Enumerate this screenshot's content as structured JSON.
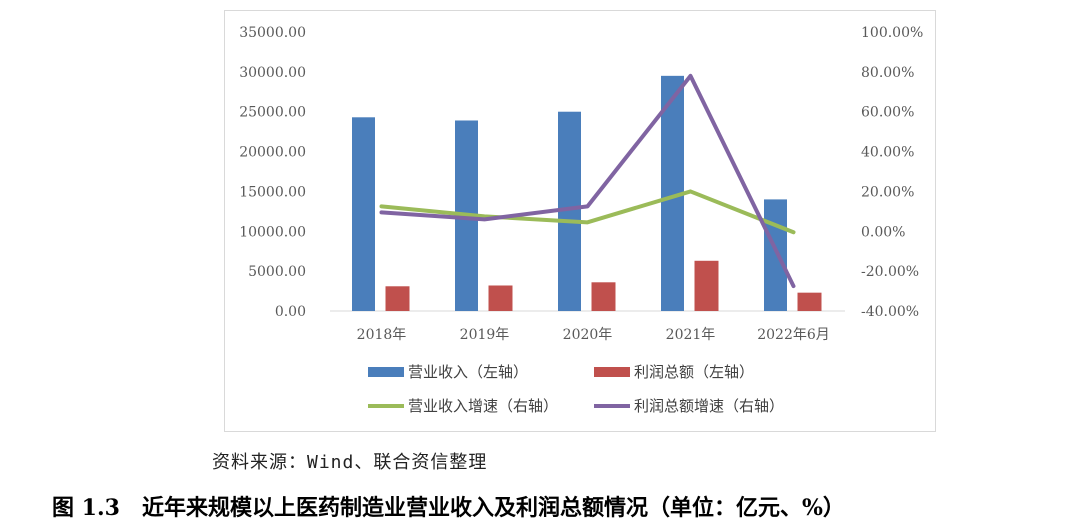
{
  "chart_data": {
    "type": "bar",
    "categories": [
      "2018年",
      "2019年",
      "2020年",
      "2021年",
      "2022年6月"
    ],
    "left_axis": {
      "ylim": [
        0,
        35000
      ],
      "ticks": [
        "0.00",
        "5000.00",
        "10000.00",
        "15000.00",
        "20000.00",
        "25000.00",
        "30000.00",
        "35000.00"
      ]
    },
    "right_axis": {
      "ylim": [
        -40,
        100
      ],
      "ticks": [
        "-40.00%",
        "-20.00%",
        "0.00%",
        "20.00%",
        "40.00%",
        "60.00%",
        "80.00%",
        "100.00%"
      ]
    },
    "series": [
      {
        "name": "营业收入（左轴）",
        "kind": "bar",
        "axis": "left",
        "color": "#4a7ebb",
        "values": [
          24300,
          23900,
          25000,
          29500,
          14000
        ]
      },
      {
        "name": "利润总额（左轴）",
        "kind": "bar",
        "axis": "left",
        "color": "#c0504d",
        "values": [
          3100,
          3200,
          3600,
          6300,
          2300
        ]
      },
      {
        "name": "营业收入增速（右轴）",
        "kind": "line",
        "axis": "right",
        "color": "#9bbb59",
        "values": [
          12.5,
          7.5,
          4.5,
          20.0,
          -0.5
        ]
      },
      {
        "name": "利润总额增速（右轴）",
        "kind": "line",
        "axis": "right",
        "color": "#8064a2",
        "values": [
          9.5,
          6.0,
          12.5,
          78.0,
          -27.5
        ]
      }
    ],
    "legend": "bottom"
  },
  "source": "资料来源：Wind、联合资信整理",
  "caption": {
    "number": "图 1.3",
    "title": "近年来规模以上医药制造业营业收入及利润总额情况（单位：亿元、%）"
  }
}
